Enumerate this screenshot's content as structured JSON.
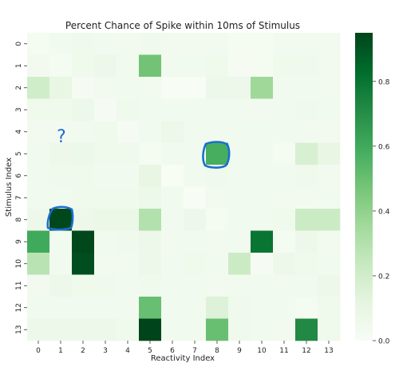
{
  "chart_data": {
    "type": "heatmap",
    "title": "Percent Chance of Spike within 10ms of Stimulus",
    "xlabel": "Reactivity Index",
    "ylabel": "Stimulus Index",
    "x_categories": [
      "0",
      "1",
      "2",
      "3",
      "4",
      "5",
      "6",
      "7",
      "8",
      "9",
      "10",
      "11",
      "12",
      "13"
    ],
    "y_categories": [
      "0",
      "1",
      "2",
      "3",
      "4",
      "5",
      "6",
      "7",
      "8",
      "9",
      "10",
      "11",
      "12",
      "13"
    ],
    "values": [
      [
        0.02,
        0.04,
        0.05,
        0.04,
        0.03,
        0.05,
        0.03,
        0.03,
        0.03,
        0.02,
        0.02,
        0.03,
        0.03,
        0.03
      ],
      [
        0.03,
        0.02,
        0.05,
        0.06,
        0.04,
        0.48,
        0.04,
        0.04,
        0.05,
        0.01,
        0.02,
        0.05,
        0.05,
        0.03
      ],
      [
        0.2,
        0.1,
        0.01,
        0.03,
        0.04,
        0.03,
        0.0,
        0.0,
        0.07,
        0.06,
        0.36,
        0.04,
        0.04,
        0.03
      ],
      [
        0.05,
        0.05,
        0.07,
        0.01,
        0.05,
        0.04,
        0.04,
        0.04,
        0.04,
        0.03,
        0.03,
        0.04,
        0.05,
        0.04
      ],
      [
        0.03,
        0.03,
        0.04,
        0.05,
        0.01,
        0.04,
        0.07,
        0.04,
        0.04,
        0.04,
        0.04,
        0.04,
        0.03,
        0.03
      ],
      [
        0.04,
        0.06,
        0.07,
        0.05,
        0.05,
        0.02,
        0.04,
        0.04,
        0.58,
        0.04,
        0.04,
        0.02,
        0.17,
        0.1
      ],
      [
        0.04,
        0.05,
        0.05,
        0.04,
        0.04,
        0.1,
        0.0,
        0.04,
        0.05,
        0.04,
        0.04,
        0.04,
        0.05,
        0.03
      ],
      [
        0.04,
        0.04,
        0.05,
        0.05,
        0.05,
        0.07,
        0.04,
        0.0,
        0.03,
        0.04,
        0.04,
        0.03,
        0.03,
        0.04
      ],
      [
        0.06,
        0.94,
        0.06,
        0.08,
        0.08,
        0.3,
        0.04,
        0.06,
        0.02,
        0.04,
        0.04,
        0.05,
        0.22,
        0.22
      ],
      [
        0.6,
        0.04,
        0.94,
        0.04,
        0.05,
        0.06,
        0.03,
        0.04,
        0.03,
        0.04,
        0.8,
        0.02,
        0.06,
        0.03
      ],
      [
        0.28,
        0.04,
        0.92,
        0.03,
        0.03,
        0.06,
        0.04,
        0.05,
        0.04,
        0.22,
        0.01,
        0.06,
        0.05,
        0.04
      ],
      [
        0.03,
        0.06,
        0.05,
        0.05,
        0.04,
        0.05,
        0.04,
        0.04,
        0.03,
        0.04,
        0.04,
        0.03,
        0.04,
        0.06
      ],
      [
        0.04,
        0.04,
        0.04,
        0.04,
        0.03,
        0.5,
        0.04,
        0.04,
        0.15,
        0.05,
        0.04,
        0.04,
        0.02,
        0.05
      ],
      [
        0.06,
        0.06,
        0.06,
        0.06,
        0.05,
        0.95,
        0.04,
        0.04,
        0.5,
        0.05,
        0.04,
        0.03,
        0.72,
        0.05
      ]
    ],
    "vmin": 0.0,
    "vmax": 0.95,
    "colormap": "Greens",
    "colorbar_ticks": [
      0.0,
      0.2,
      0.4,
      0.6,
      0.8
    ],
    "colorbar_tick_labels": [
      "0.0",
      "0.2",
      "0.4",
      "0.6",
      "0.8"
    ],
    "annotation_color": "#1a6fd0",
    "annotation_text": "?"
  }
}
